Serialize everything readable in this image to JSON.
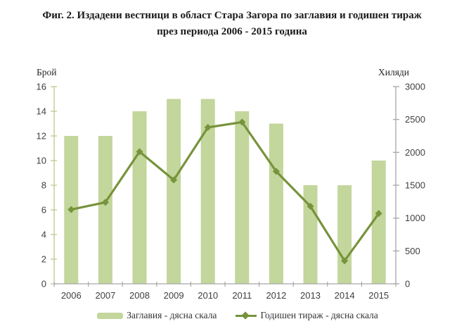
{
  "figure": {
    "title_line1": "Фиг. 2. Издадени вестници в област Стара Загора по заглавия и годишен тираж",
    "title_line2": "през периода 2006 - 2015 година"
  },
  "legend": {
    "items": [
      {
        "label": "Заглавия - дясна скала",
        "swatch": "bar-swatch"
      },
      {
        "label": "Годишен тираж - дясна скала",
        "swatch": "line-swatch"
      }
    ]
  },
  "chart_data": {
    "type": "bar",
    "subtype": "combo bar+line, dual axis",
    "title": "Фиг. 2. Издадени вестници в област Стара Загора по заглавия и годишен тираж през периода 2006 - 2015 година",
    "categories": [
      "2006",
      "2007",
      "2008",
      "2009",
      "2010",
      "2011",
      "2012",
      "2013",
      "2014",
      "2015"
    ],
    "series": [
      {
        "name": "Заглавия - дясна скала",
        "type": "bar",
        "axis": "left",
        "values": [
          12,
          12,
          14,
          15,
          15,
          14,
          13,
          8,
          8,
          10
        ]
      },
      {
        "name": "Годишен тираж - дясна скала",
        "type": "line",
        "axis": "right",
        "values": [
          1130,
          1240,
          2010,
          1580,
          2380,
          2460,
          1710,
          1180,
          350,
          1070
        ]
      }
    ],
    "left_axis": {
      "title": "Брой",
      "min": 0,
      "max": 16,
      "step": 2
    },
    "right_axis": {
      "title": "Хиляди",
      "min": 0,
      "max": 3000,
      "step": 500
    },
    "grid": false,
    "legend_position": "bottom",
    "colors": {
      "bar": "#c3d69b",
      "line": "#77933c",
      "left_axis_line": "#bdc98f",
      "gray_axis_line": "#a6a6a6",
      "tick_text": "#3f3f3f",
      "axis_title_text": "#262626",
      "title_text": "#1a1a1a"
    }
  }
}
